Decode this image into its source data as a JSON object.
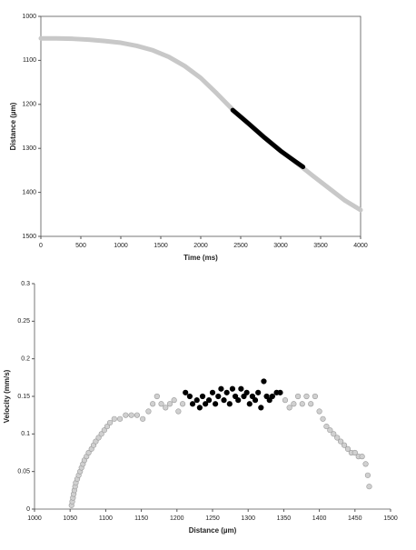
{
  "chart_data": [
    {
      "type": "line",
      "x_label": "Time (ms)",
      "y_label": "Distance (µm)",
      "xlim": [
        0,
        4000
      ],
      "xticks": [
        0,
        500,
        1000,
        1500,
        2000,
        2500,
        3000,
        3500,
        4000
      ],
      "ylim": [
        1000,
        1500
      ],
      "yticks": [
        1000,
        1100,
        1200,
        1300,
        1400,
        1500
      ],
      "y_reversed": true,
      "series": [
        {
          "color": "#c8c8c8",
          "x": [
            0,
            200,
            400,
            600,
            800,
            1000,
            1200,
            1400,
            1600,
            1800,
            2000,
            2200,
            2400,
            2600,
            2800,
            3000,
            3200,
            3400,
            3600,
            3800,
            4000
          ],
          "values": [
            1050,
            1050,
            1051,
            1053,
            1056,
            1060,
            1067,
            1077,
            1092,
            1113,
            1140,
            1175,
            1212,
            1243,
            1275,
            1305,
            1333,
            1362,
            1390,
            1418,
            1440
          ]
        },
        {
          "color": "#000000",
          "x": [
            2400,
            2600,
            2800,
            3000,
            3200,
            3280
          ],
          "values": [
            1213,
            1244,
            1276,
            1306,
            1332,
            1342
          ]
        }
      ]
    },
    {
      "type": "scatter",
      "x_label": "Distance (µm)",
      "y_label": "Velocity (mm/s)",
      "xlim": [
        1000,
        1500
      ],
      "xticks": [
        1000,
        1050,
        1100,
        1150,
        1200,
        1250,
        1300,
        1350,
        1400,
        1450,
        1500
      ],
      "ylim": [
        0,
        0.3
      ],
      "yticks": [
        0,
        0.05,
        0.1,
        0.15,
        0.2,
        0.25,
        0.3
      ],
      "series": [
        {
          "color": "#d0d0d0",
          "x": [
            1052,
            1053,
            1054,
            1055,
            1056,
            1057,
            1058,
            1060,
            1062,
            1064,
            1066,
            1068,
            1070,
            1073,
            1076,
            1080,
            1083,
            1086,
            1090,
            1094,
            1098,
            1102,
            1106,
            1112,
            1120,
            1128,
            1136,
            1144,
            1152,
            1160,
            1166,
            1172,
            1178,
            1184,
            1190,
            1196,
            1202,
            1208,
            1352,
            1358,
            1364,
            1370,
            1376,
            1382,
            1388,
            1394,
            1400,
            1405,
            1410,
            1415,
            1420,
            1425,
            1430,
            1435,
            1440,
            1445,
            1450,
            1455,
            1460,
            1465,
            1468,
            1470
          ],
          "values": [
            0.005,
            0.01,
            0.015,
            0.02,
            0.025,
            0.03,
            0.035,
            0.04,
            0.045,
            0.05,
            0.055,
            0.06,
            0.065,
            0.07,
            0.075,
            0.08,
            0.085,
            0.09,
            0.095,
            0.1,
            0.105,
            0.11,
            0.115,
            0.12,
            0.12,
            0.125,
            0.125,
            0.125,
            0.12,
            0.13,
            0.14,
            0.15,
            0.14,
            0.135,
            0.14,
            0.145,
            0.13,
            0.14,
            0.145,
            0.135,
            0.14,
            0.15,
            0.14,
            0.15,
            0.14,
            0.15,
            0.13,
            0.12,
            0.11,
            0.105,
            0.1,
            0.095,
            0.09,
            0.085,
            0.08,
            0.075,
            0.075,
            0.07,
            0.07,
            0.06,
            0.045,
            0.03
          ]
        },
        {
          "color": "#000000",
          "x": [
            1212,
            1218,
            1222,
            1228,
            1232,
            1236,
            1240,
            1245,
            1250,
            1254,
            1258,
            1262,
            1266,
            1270,
            1274,
            1278,
            1282,
            1286,
            1290,
            1294,
            1298,
            1302,
            1306,
            1310,
            1314,
            1318,
            1322,
            1326,
            1330,
            1334,
            1340,
            1345
          ],
          "values": [
            0.155,
            0.15,
            0.14,
            0.145,
            0.135,
            0.15,
            0.14,
            0.145,
            0.155,
            0.14,
            0.15,
            0.16,
            0.145,
            0.155,
            0.14,
            0.16,
            0.15,
            0.145,
            0.16,
            0.15,
            0.155,
            0.14,
            0.15,
            0.145,
            0.155,
            0.135,
            0.17,
            0.15,
            0.145,
            0.15,
            0.155,
            0.155
          ]
        }
      ]
    }
  ]
}
